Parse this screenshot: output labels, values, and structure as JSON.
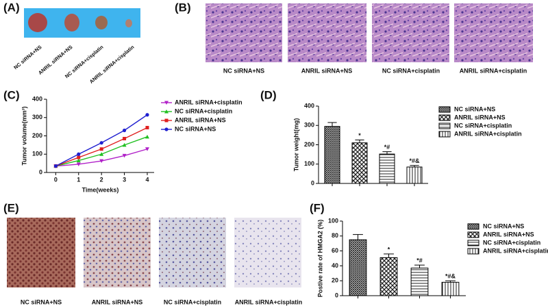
{
  "figure": {
    "panel_labels": [
      "(A)",
      "(B)",
      "(C)",
      "(D)",
      "(E)",
      "(F)"
    ],
    "a_labels": [
      "NC siRNA+NS",
      "ANRIL siRNA+NS",
      "NC siRNA+cisplatin",
      "ANRIL siRNA+cisplatin"
    ],
    "b_captions": [
      "NC siRNA+NS",
      "ANRIL siRNA+NS",
      "NC siRNA+cisplatin",
      "ANRIL siRNA+cisplatin"
    ],
    "e_captions": [
      "NC siRNA+NS",
      "ANRIL siRNA+NS",
      "NC siRNA+cisplatin",
      "ANRIL siRNA+cisplatin"
    ]
  },
  "chart_data": [
    {
      "type": "line",
      "xlabel": "Time(weeks)",
      "ylabel": "Tumor volume(mm³)",
      "x": [
        0,
        1,
        2,
        3,
        4
      ],
      "xlim": [
        -0.4,
        4.3
      ],
      "xticks": [
        0,
        1,
        2,
        3,
        4
      ],
      "ylim": [
        0,
        400
      ],
      "yticks": [
        0,
        100,
        200,
        300,
        400
      ],
      "series": [
        {
          "name": "ANRIL siRNA+cisplatin",
          "color": "#b020c8",
          "marker": "triangle-down",
          "values": [
            35,
            45,
            63,
            92,
            128
          ]
        },
        {
          "name": "NC siRNA+cisplatin",
          "color": "#20c020",
          "marker": "triangle",
          "values": [
            35,
            65,
            100,
            150,
            195
          ]
        },
        {
          "name": "ANRIL siRNA+NS",
          "color": "#e02020",
          "marker": "square",
          "values": [
            35,
            82,
            128,
            185,
            245
          ]
        },
        {
          "name": "NC siRNA+NS",
          "color": "#2020d0",
          "marker": "circle",
          "values": [
            35,
            100,
            162,
            230,
            315
          ]
        }
      ]
    },
    {
      "type": "bar",
      "ylabel": "Tumor weight(mg)",
      "categories": [
        "NC siRNA+NS",
        "ANRIL siRNA+NS",
        "NC siRNA+cisplatin",
        "ANRIL siRNA+cisplatin"
      ],
      "values": [
        295,
        210,
        152,
        85
      ],
      "errors": [
        20,
        15,
        12,
        8
      ],
      "annotations": [
        null,
        "*",
        "*#",
        "*#&"
      ],
      "ylim": [
        0,
        400
      ],
      "yticks": [
        0,
        100,
        200,
        300,
        400
      ]
    },
    {
      "type": "bar",
      "ylabel": "Postive rate of HMGA2 (%)",
      "categories": [
        "NC siRNA+NS",
        "ANRIL siRNA+NS",
        "NC siRNA+cisplatin",
        "ANRIL siRNA+cisplatin"
      ],
      "values": [
        75,
        51,
        37,
        18
      ],
      "errors": [
        7,
        5,
        4,
        2
      ],
      "annotations": [
        null,
        "*",
        "*#",
        "*#&"
      ],
      "ylim": [
        0,
        100
      ],
      "yticks": [
        0,
        20,
        40,
        60,
        80,
        100
      ]
    }
  ]
}
